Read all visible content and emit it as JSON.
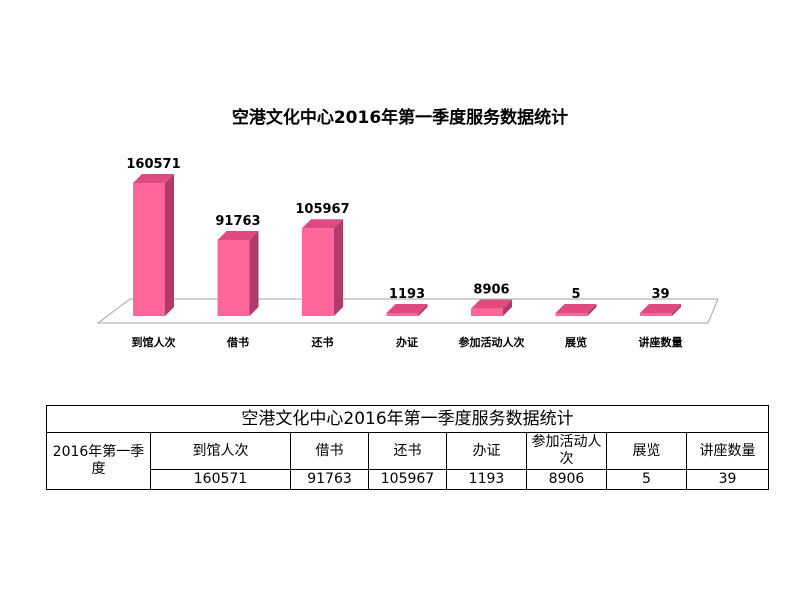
{
  "chart_data": {
    "type": "bar",
    "title": "空港文化中心2016年第一季度服务数据统计",
    "categories": [
      "到馆人次",
      "借书",
      "还书",
      "办证",
      "参加活动人次",
      "展览",
      "讲座数量"
    ],
    "values": [
      160571,
      91763,
      105967,
      1193,
      8906,
      5,
      39
    ],
    "ylim": [
      0,
      160571
    ],
    "grid": false,
    "legend": "none",
    "bar_color": "#ff6699",
    "bar_side_color": "#b03a6a",
    "bar_top_color": "#e04a80"
  },
  "table": {
    "title": "空港文化中心2016年第一季度服务数据统计",
    "row_label": "2016年第一季度",
    "headers": [
      "到馆人次",
      "借书",
      "还书",
      "办证",
      "参加活动人次",
      "展览",
      "讲座数量"
    ],
    "values": [
      "160571",
      "91763",
      "105967",
      "1193",
      "8906",
      "5",
      "39"
    ]
  }
}
